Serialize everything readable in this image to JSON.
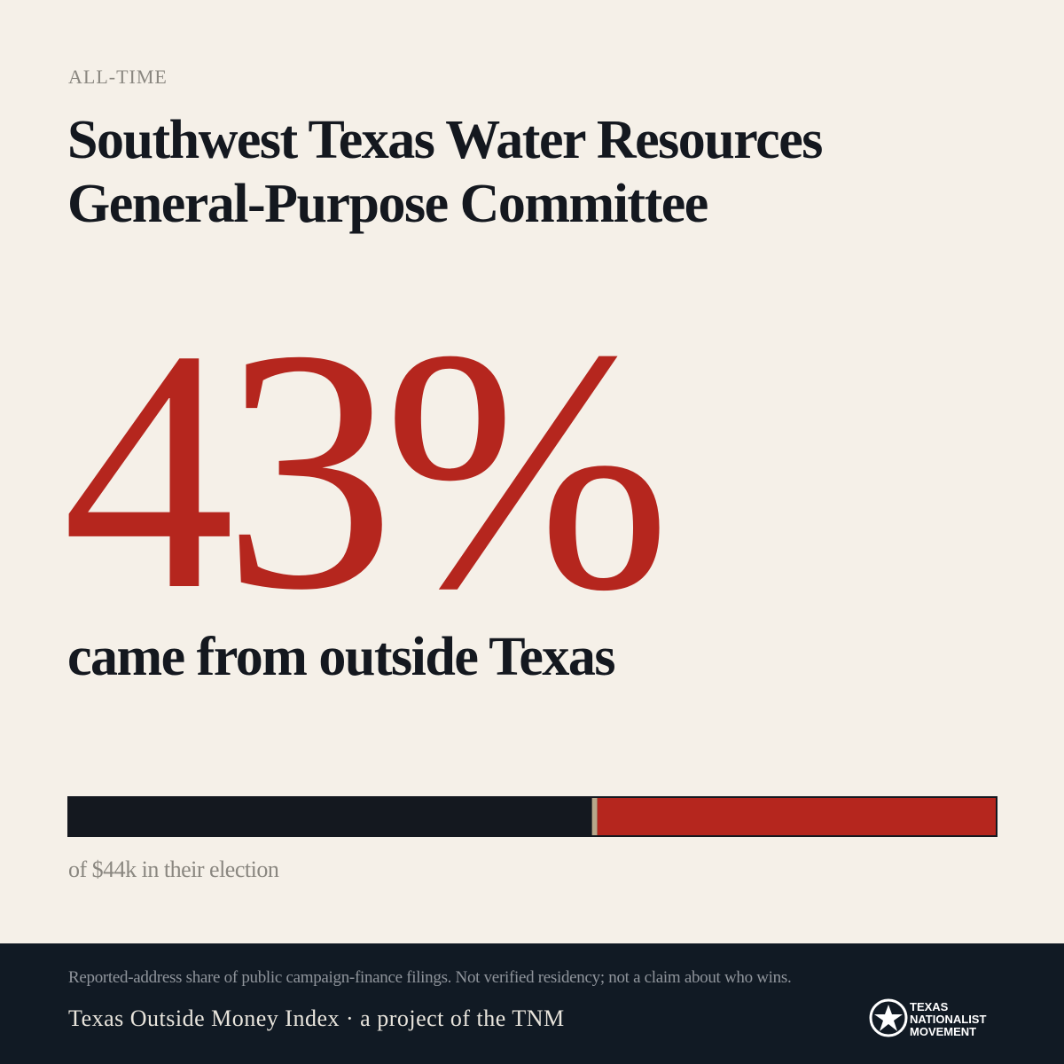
{
  "header": {
    "eyebrow": "ALL-TIME",
    "title": "Southwest Texas Water Resources General-Purpose Committee"
  },
  "stat": {
    "value": 43,
    "label": "43%",
    "caption": "came from outside Texas"
  },
  "bar": {
    "xlim": [
      0,
      100
    ],
    "note": "of $44k in their election"
  },
  "footer": {
    "disclaimer": "Reported-address share of public campaign-finance filings. Not verified residency; not a claim about who wins.",
    "credit": "Texas Outside Money Index · a project of the TNM",
    "logo": [
      "TEXAS",
      "NATIONALIST",
      "MOVEMENT"
    ]
  }
}
